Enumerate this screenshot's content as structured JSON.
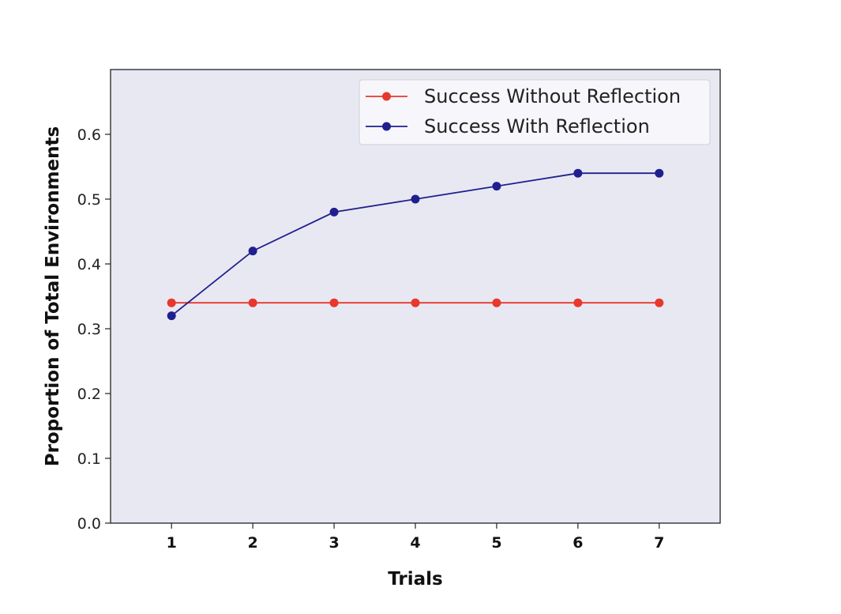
{
  "chart_data": {
    "type": "line",
    "title": "",
    "xlabel": "Trials",
    "ylabel": "Proportion of Total Environments",
    "x": [
      1,
      2,
      3,
      4,
      5,
      6,
      7
    ],
    "xlim": [
      0.25,
      7.75
    ],
    "ylim": [
      0.0,
      0.7
    ],
    "yticks": [
      0.0,
      0.1,
      0.2,
      0.3,
      0.4,
      0.5,
      0.6
    ],
    "ytick_labels": [
      "0.0",
      "0.1",
      "0.2",
      "0.3",
      "0.4",
      "0.5",
      "0.6"
    ],
    "xtick_labels": [
      "1",
      "2",
      "3",
      "4",
      "5",
      "6",
      "7"
    ],
    "grid": false,
    "legend_position": "top-right",
    "background_color": "#e8e8f2",
    "series": [
      {
        "name": "Success Without Reflection",
        "color": "#e8372c",
        "values": [
          0.34,
          0.34,
          0.34,
          0.34,
          0.34,
          0.34,
          0.34
        ]
      },
      {
        "name": "Success With Reflection",
        "color": "#1f1f8f",
        "values": [
          0.32,
          0.42,
          0.48,
          0.5,
          0.52,
          0.54,
          0.54
        ]
      }
    ]
  }
}
